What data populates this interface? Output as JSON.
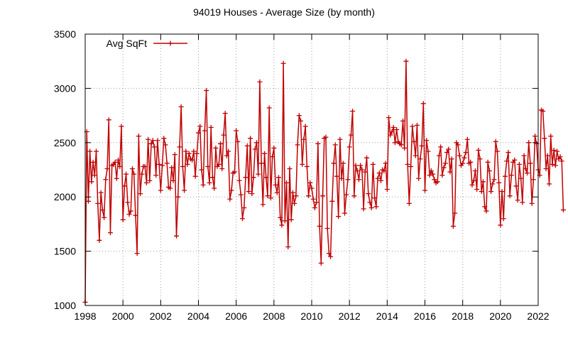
{
  "chart_data": {
    "type": "line",
    "title": "94019 Houses - Average Size (by month)",
    "xlabel": "",
    "ylabel": "",
    "xlim": [
      1998,
      2022
    ],
    "ylim": [
      1000,
      3500
    ],
    "x_ticks": [
      "1998",
      "2000",
      "2002",
      "2004",
      "2006",
      "2008",
      "2010",
      "2012",
      "2014",
      "2016",
      "2018",
      "2020",
      "2022"
    ],
    "y_ticks": [
      "1000",
      "1500",
      "2000",
      "2500",
      "3000",
      "3500"
    ],
    "grid": true,
    "legend_position": "top-left",
    "line_color": "#c00000",
    "series": [
      {
        "name": "Avg SqFt",
        "x_start": 1998,
        "x_step": 0.0833333,
        "values": [
          1030,
          2600,
          1960,
          2420,
          2140,
          2320,
          2200,
          2420,
          1940,
          1600,
          2040,
          1880,
          1810,
          2160,
          2260,
          2710,
          1670,
          2290,
          2300,
          2320,
          2170,
          2340,
          2280,
          2650,
          1790,
          2100,
          2210,
          1950,
          1840,
          1870,
          2260,
          2210,
          1830,
          1480,
          2560,
          2030,
          2210,
          2280,
          2280,
          2130,
          2530,
          2150,
          2490,
          2520,
          2460,
          2200,
          2520,
          2300,
          2060,
          2290,
          2540,
          2480,
          2310,
          2090,
          2080,
          2270,
          2150,
          2390,
          1640,
          2000,
          2460,
          2830,
          2280,
          2060,
          2420,
          2300,
          2400,
          2350,
          2340,
          2420,
          2190,
          2400,
          2590,
          2650,
          2250,
          2110,
          2610,
          2980,
          2280,
          2130,
          2640,
          2180,
          2080,
          2450,
          2280,
          2300,
          2490,
          2260,
          2570,
          2770,
          2380,
          2420,
          1980,
          2060,
          2220,
          2230,
          2610,
          2510,
          2150,
          2020,
          1800,
          1900,
          2180,
          2470,
          2050,
          2540,
          2030,
          2180,
          2440,
          2500,
          2210,
          3060,
          2310,
          1930,
          2400,
          2180,
          2010,
          2820,
          1990,
          2370,
          2450,
          2110,
          2040,
          2180,
          1810,
          1740,
          3230,
          1780,
          2130,
          1540,
          2260,
          1790,
          2040,
          1940,
          2010,
          2480,
          2750,
          2700,
          2300,
          2530,
          2650,
          2280,
          2010,
          2130,
          2080,
          1980,
          1900,
          1950,
          2490,
          1730,
          1390,
          2010,
          2540,
          2550,
          1710,
          1480,
          1450,
          1960,
          2310,
          2480,
          2190,
          1820,
          2530,
          2170,
          2310,
          1850,
          2020,
          2160,
          2460,
          2570,
          2790,
          2010,
          2290,
          2240,
          2160,
          2290,
          2250,
          1890,
          2230,
          2360,
          2030,
          1950,
          1900,
          2300,
          1990,
          1910,
          2170,
          2220,
          2150,
          2250,
          2240,
          2310,
          2070,
          2730,
          2570,
          2600,
          2640,
          2500,
          2620,
          2510,
          2490,
          2480,
          2700,
          2450,
          3250,
          2300,
          1940,
          2280,
          2650,
          2510,
          2380,
          2660,
          2170,
          2350,
          2470,
          2860,
          2060,
          2520,
          2420,
          2200,
          2240,
          2210,
          2160,
          2130,
          2140,
          2380,
          2460,
          2200,
          2270,
          2310,
          2410,
          2440,
          2230,
          2350,
          1730,
          1850,
          2500,
          2480,
          2380,
          2290,
          2310,
          2360,
          2410,
          2530,
          2310,
          2320,
          2110,
          2150,
          2240,
          2070,
          2430,
          2350,
          2050,
          2140,
          1910,
          1870,
          2320,
          2240,
          2050,
          2120,
          2160,
          2510,
          2420,
          2130,
          1740,
          2050,
          1800,
          2190,
          2330,
          2410,
          2010,
          2200,
          2320,
          2340,
          2100,
          1970,
          2300,
          2170,
          1950,
          2380,
          2260,
          2220,
          2500,
          2310,
          1940,
          2160,
          2560,
          2490,
          2250,
          2200,
          2800,
          2790,
          2540,
          2260,
          2380,
          2120,
          2560,
          2300,
          2430,
          2290,
          2420,
          2350,
          2370,
          2330,
          1880
        ]
      }
    ]
  }
}
